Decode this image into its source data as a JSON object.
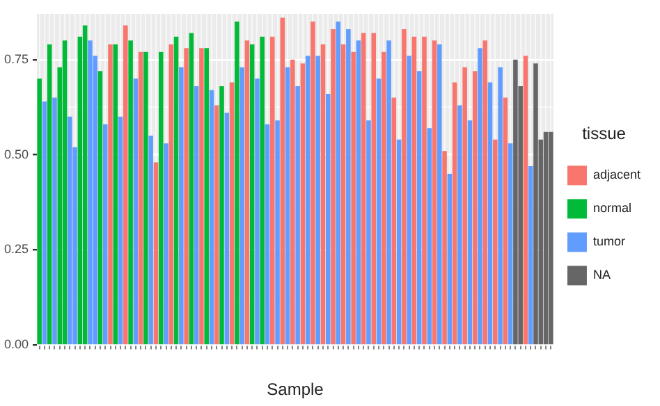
{
  "chart_data": {
    "type": "bar",
    "xlabel": "Sample",
    "legend_title": "tissue",
    "legend": "right",
    "grid": true,
    "categories": [
      null,
      null,
      null,
      null,
      null,
      null,
      null,
      null,
      null,
      null,
      null,
      null,
      null,
      null,
      null,
      null,
      null,
      null,
      null,
      null,
      null,
      null,
      null,
      null,
      null,
      null,
      null,
      null,
      null,
      null,
      null,
      null,
      null,
      null,
      null,
      null,
      null,
      null,
      null,
      null,
      null,
      null,
      null,
      null,
      null,
      null,
      null,
      null,
      null,
      null,
      null,
      null,
      null,
      null,
      null,
      null,
      null,
      null,
      null,
      null,
      null,
      null,
      null,
      null,
      null,
      null,
      null,
      null,
      null,
      null,
      null,
      null,
      null,
      null,
      null,
      null,
      null,
      null,
      null,
      null,
      null,
      null,
      null,
      null,
      null,
      null,
      null,
      null,
      null,
      null,
      null,
      null,
      null,
      null,
      null,
      null,
      null,
      null,
      null,
      null,
      null,
      null
    ],
    "ylim": [
      0,
      0.87
    ],
    "yticks": [
      {
        "value": 0,
        "label": "0.00"
      },
      {
        "value": 0.125,
        "label": null
      },
      {
        "value": 0.25,
        "label": "0.25"
      },
      {
        "value": 0.375,
        "label": null
      },
      {
        "value": 0.5,
        "label": "0.50"
      },
      {
        "value": 0.625,
        "label": null
      },
      {
        "value": 0.75,
        "label": "0.75"
      }
    ],
    "series": [
      {
        "name": "adjacent",
        "color": "#f8766d",
        "values": [
          null,
          null,
          null,
          null,
          null,
          null,
          null,
          null,
          null,
          null,
          null,
          null,
          null,
          null,
          0.79,
          null,
          null,
          0.84,
          null,
          null,
          0.77,
          null,
          null,
          0.48,
          null,
          null,
          0.79,
          null,
          null,
          0.78,
          null,
          null,
          0.78,
          null,
          null,
          0.63,
          null,
          null,
          0.69,
          null,
          null,
          0.8,
          null,
          null,
          null,
          null,
          0.81,
          null,
          0.86,
          null,
          0.75,
          null,
          0.74,
          null,
          0.85,
          null,
          0.79,
          null,
          0.83,
          null,
          0.79,
          null,
          0.77,
          null,
          0.82,
          null,
          0.82,
          null,
          0.77,
          null,
          0.65,
          null,
          0.83,
          null,
          0.81,
          null,
          0.81,
          null,
          0.8,
          null,
          0.51,
          null,
          0.69,
          null,
          0.73,
          null,
          0.72,
          null,
          0.8,
          null,
          0.54,
          null,
          0.65,
          null,
          null,
          null,
          0.76,
          null,
          null,
          null,
          null,
          null
        ]
      },
      {
        "name": "normal",
        "color": "#00ba38",
        "values": [
          0.7,
          null,
          0.79,
          null,
          0.73,
          0.8,
          null,
          null,
          0.81,
          0.84,
          null,
          null,
          0.72,
          null,
          null,
          0.79,
          null,
          null,
          0.8,
          null,
          null,
          0.77,
          null,
          null,
          0.77,
          null,
          null,
          0.81,
          null,
          null,
          0.82,
          null,
          null,
          0.78,
          null,
          null,
          0.68,
          null,
          null,
          0.85,
          null,
          null,
          0.79,
          null,
          0.81,
          null,
          null,
          null,
          null,
          null,
          null,
          null,
          null,
          null,
          null,
          null,
          null,
          null,
          null,
          null,
          null,
          null,
          null,
          null,
          null,
          null,
          null,
          null,
          null,
          null,
          null,
          null,
          null,
          null,
          null,
          null,
          null,
          null,
          null,
          null,
          null,
          null,
          null,
          null,
          null,
          null,
          null,
          null,
          null,
          null,
          null,
          null,
          null,
          null,
          null,
          null,
          null,
          null,
          null,
          null,
          null,
          null
        ]
      },
      {
        "name": "tumor",
        "color": "#619cff",
        "values": [
          null,
          0.64,
          null,
          0.65,
          null,
          null,
          0.6,
          0.52,
          null,
          null,
          0.8,
          0.76,
          null,
          0.58,
          null,
          null,
          0.6,
          null,
          null,
          0.7,
          null,
          null,
          0.55,
          null,
          null,
          0.53,
          null,
          null,
          0.73,
          null,
          null,
          0.68,
          null,
          null,
          0.67,
          null,
          null,
          0.61,
          null,
          null,
          0.73,
          null,
          null,
          0.7,
          null,
          0.58,
          null,
          0.59,
          null,
          0.73,
          null,
          0.68,
          null,
          0.76,
          null,
          0.76,
          null,
          0.66,
          null,
          0.85,
          null,
          0.83,
          null,
          0.8,
          null,
          0.59,
          null,
          0.7,
          null,
          0.8,
          null,
          0.54,
          null,
          0.76,
          null,
          0.72,
          null,
          0.57,
          null,
          0.79,
          null,
          0.45,
          null,
          0.63,
          null,
          0.59,
          null,
          0.78,
          null,
          0.69,
          null,
          0.73,
          null,
          0.53,
          null,
          null,
          null,
          0.47,
          null,
          null,
          null,
          null
        ]
      },
      {
        "name": "NA",
        "color": "#666666",
        "values": [
          null,
          null,
          null,
          null,
          null,
          null,
          null,
          null,
          null,
          null,
          null,
          null,
          null,
          null,
          null,
          null,
          null,
          null,
          null,
          null,
          null,
          null,
          null,
          null,
          null,
          null,
          null,
          null,
          null,
          null,
          null,
          null,
          null,
          null,
          null,
          null,
          null,
          null,
          null,
          null,
          null,
          null,
          null,
          null,
          null,
          null,
          null,
          null,
          null,
          null,
          null,
          null,
          null,
          null,
          null,
          null,
          null,
          null,
          null,
          null,
          null,
          null,
          null,
          null,
          null,
          null,
          null,
          null,
          null,
          null,
          null,
          null,
          null,
          null,
          null,
          null,
          null,
          null,
          null,
          null,
          null,
          null,
          null,
          null,
          null,
          null,
          null,
          null,
          null,
          null,
          null,
          null,
          null,
          null,
          0.75,
          0.68,
          null,
          null,
          0.74,
          0.54,
          0.56,
          0.56
        ]
      }
    ]
  }
}
